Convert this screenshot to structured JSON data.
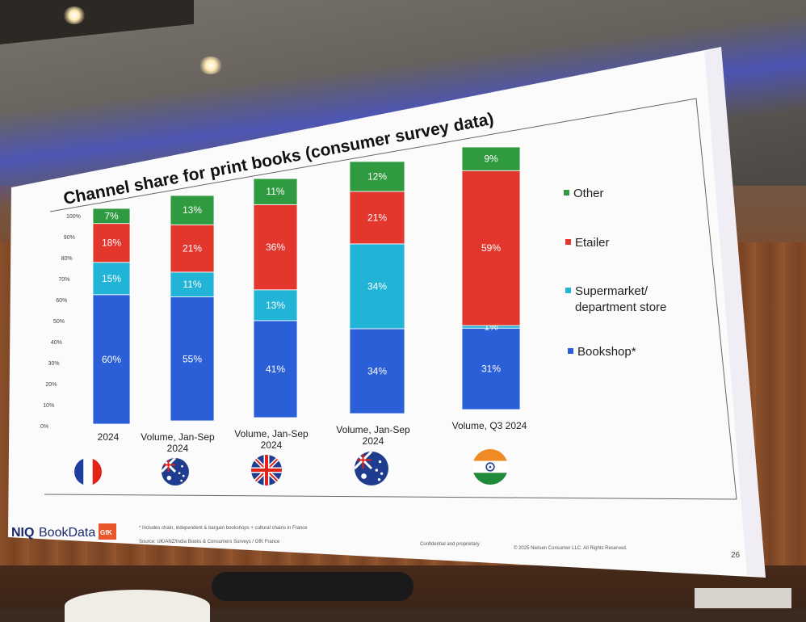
{
  "chart_data": {
    "type": "bar",
    "stacked": true,
    "percent": true,
    "title": "Channel share for print books (consumer survey data)",
    "ylim": [
      0,
      100
    ],
    "yticks": [
      "0%",
      "10%",
      "20%",
      "30%",
      "40%",
      "50%",
      "60%",
      "70%",
      "80%",
      "90%",
      "100%"
    ],
    "categories": [
      "2024",
      "Volume, Jan-Sep 2024",
      "Volume, Jan-Sep 2024",
      "Volume, Jan-Sep 2024",
      "Volume, Q3 2024"
    ],
    "category_lines": [
      [
        "2024"
      ],
      [
        "Volume, Jan-Sep",
        "2024"
      ],
      [
        "Volume, Jan-Sep",
        "2024"
      ],
      [
        "Volume, Jan-Sep",
        "2024"
      ],
      [
        "Volume, Q3 2024"
      ]
    ],
    "countries": [
      "France",
      "Australia",
      "United Kingdom",
      "Australia",
      "India"
    ],
    "series": [
      {
        "name": "Bookshop*",
        "color": "#2a5fd8",
        "values": [
          60,
          55,
          41,
          34,
          31
        ],
        "labels": [
          "60%",
          "55%",
          "41%",
          "34%",
          "31%"
        ]
      },
      {
        "name": "Supermarket/ department store",
        "color": "#22b4d6",
        "values": [
          15,
          11,
          13,
          34,
          1
        ],
        "labels": [
          "15%",
          "11%",
          "13%",
          "34%",
          "1%"
        ]
      },
      {
        "name": "Etailer",
        "color": "#e3362d",
        "values": [
          18,
          21,
          36,
          21,
          59
        ],
        "labels": [
          "18%",
          "21%",
          "36%",
          "21%",
          "59%"
        ]
      },
      {
        "name": "Other",
        "color": "#2f9a3f",
        "values": [
          7,
          13,
          11,
          12,
          9
        ],
        "labels": [
          "7%",
          "13%",
          "11%",
          "12%",
          "9%"
        ]
      }
    ],
    "legend_order": [
      "Other",
      "Etailer",
      "Supermarket/ department store",
      "Bookshop*"
    ],
    "legend_lines": [
      [
        "Other"
      ],
      [
        "Etailer"
      ],
      [
        "Supermarket/",
        "department store"
      ],
      [
        "Bookshop*"
      ]
    ],
    "legend_position": "right",
    "grid": false
  },
  "footer": {
    "brand_a": "NIQ",
    "brand_b": "BookData",
    "brand_logo": "GfK",
    "note": "* Includes chain, independent & bargain bookshops + cultural chains in France",
    "source": "Source: UK/ANZ/India Books & Consumers Surveys / GfK France",
    "confidential": "Confidential and proprietary",
    "copyright": "© 2025 Nielsen Consumer LLC. All Rights Reserved.",
    "page": "26"
  },
  "colors": {
    "bookshop": "#2a5fd8",
    "supermarket": "#22b4d6",
    "etailer": "#e3362d",
    "other": "#2f9a3f",
    "brand": "#1a2a6c"
  }
}
